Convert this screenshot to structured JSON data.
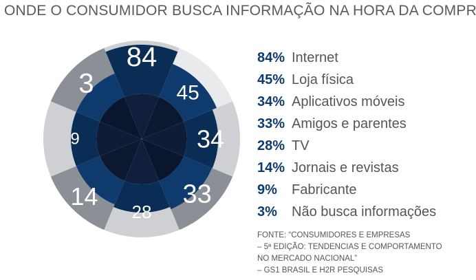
{
  "title": "ONDE O CONSUMIDOR  BUSCA INFORMAÇÃO NA HORA DA COMPRA",
  "chart_data": {
    "type": "pie",
    "title": "ONDE O CONSUMIDOR  BUSCA INFORMAÇÃO NA HORA DA COMPRA",
    "categories": [
      "Internet",
      "Loja física",
      "Aplicativos móveis",
      "Amigos e parentes",
      "TV",
      "Jornais e revistas",
      "Fabricante",
      "Não busca informações"
    ],
    "values": [
      84,
      45,
      34,
      33,
      28,
      14,
      9,
      3
    ],
    "value_labels": [
      "84",
      "45",
      "34",
      "33",
      "28",
      "14",
      "9",
      "3"
    ],
    "legend_labels": [
      "84%",
      "45%",
      "34%",
      "33%",
      "28%",
      "14%",
      "9%",
      "3%"
    ]
  },
  "colors": {
    "navy": "#0e3a6e",
    "navy_dark": "#0a2d56",
    "gray": "#8b8f96",
    "light_gray": "#cfd0d4",
    "lightest_gray": "#e9eaec",
    "core": "#0c1a33"
  },
  "source": [
    "FONTE: “CONSUMIDORES E EMPRESAS",
    "– 5ª EDIÇÃO: TENDENCIAS E COMPORTAMENTO",
    "NO MERCADO NACIONAL”",
    "– GS1 BRASIL E H2R PESQUISAS"
  ]
}
